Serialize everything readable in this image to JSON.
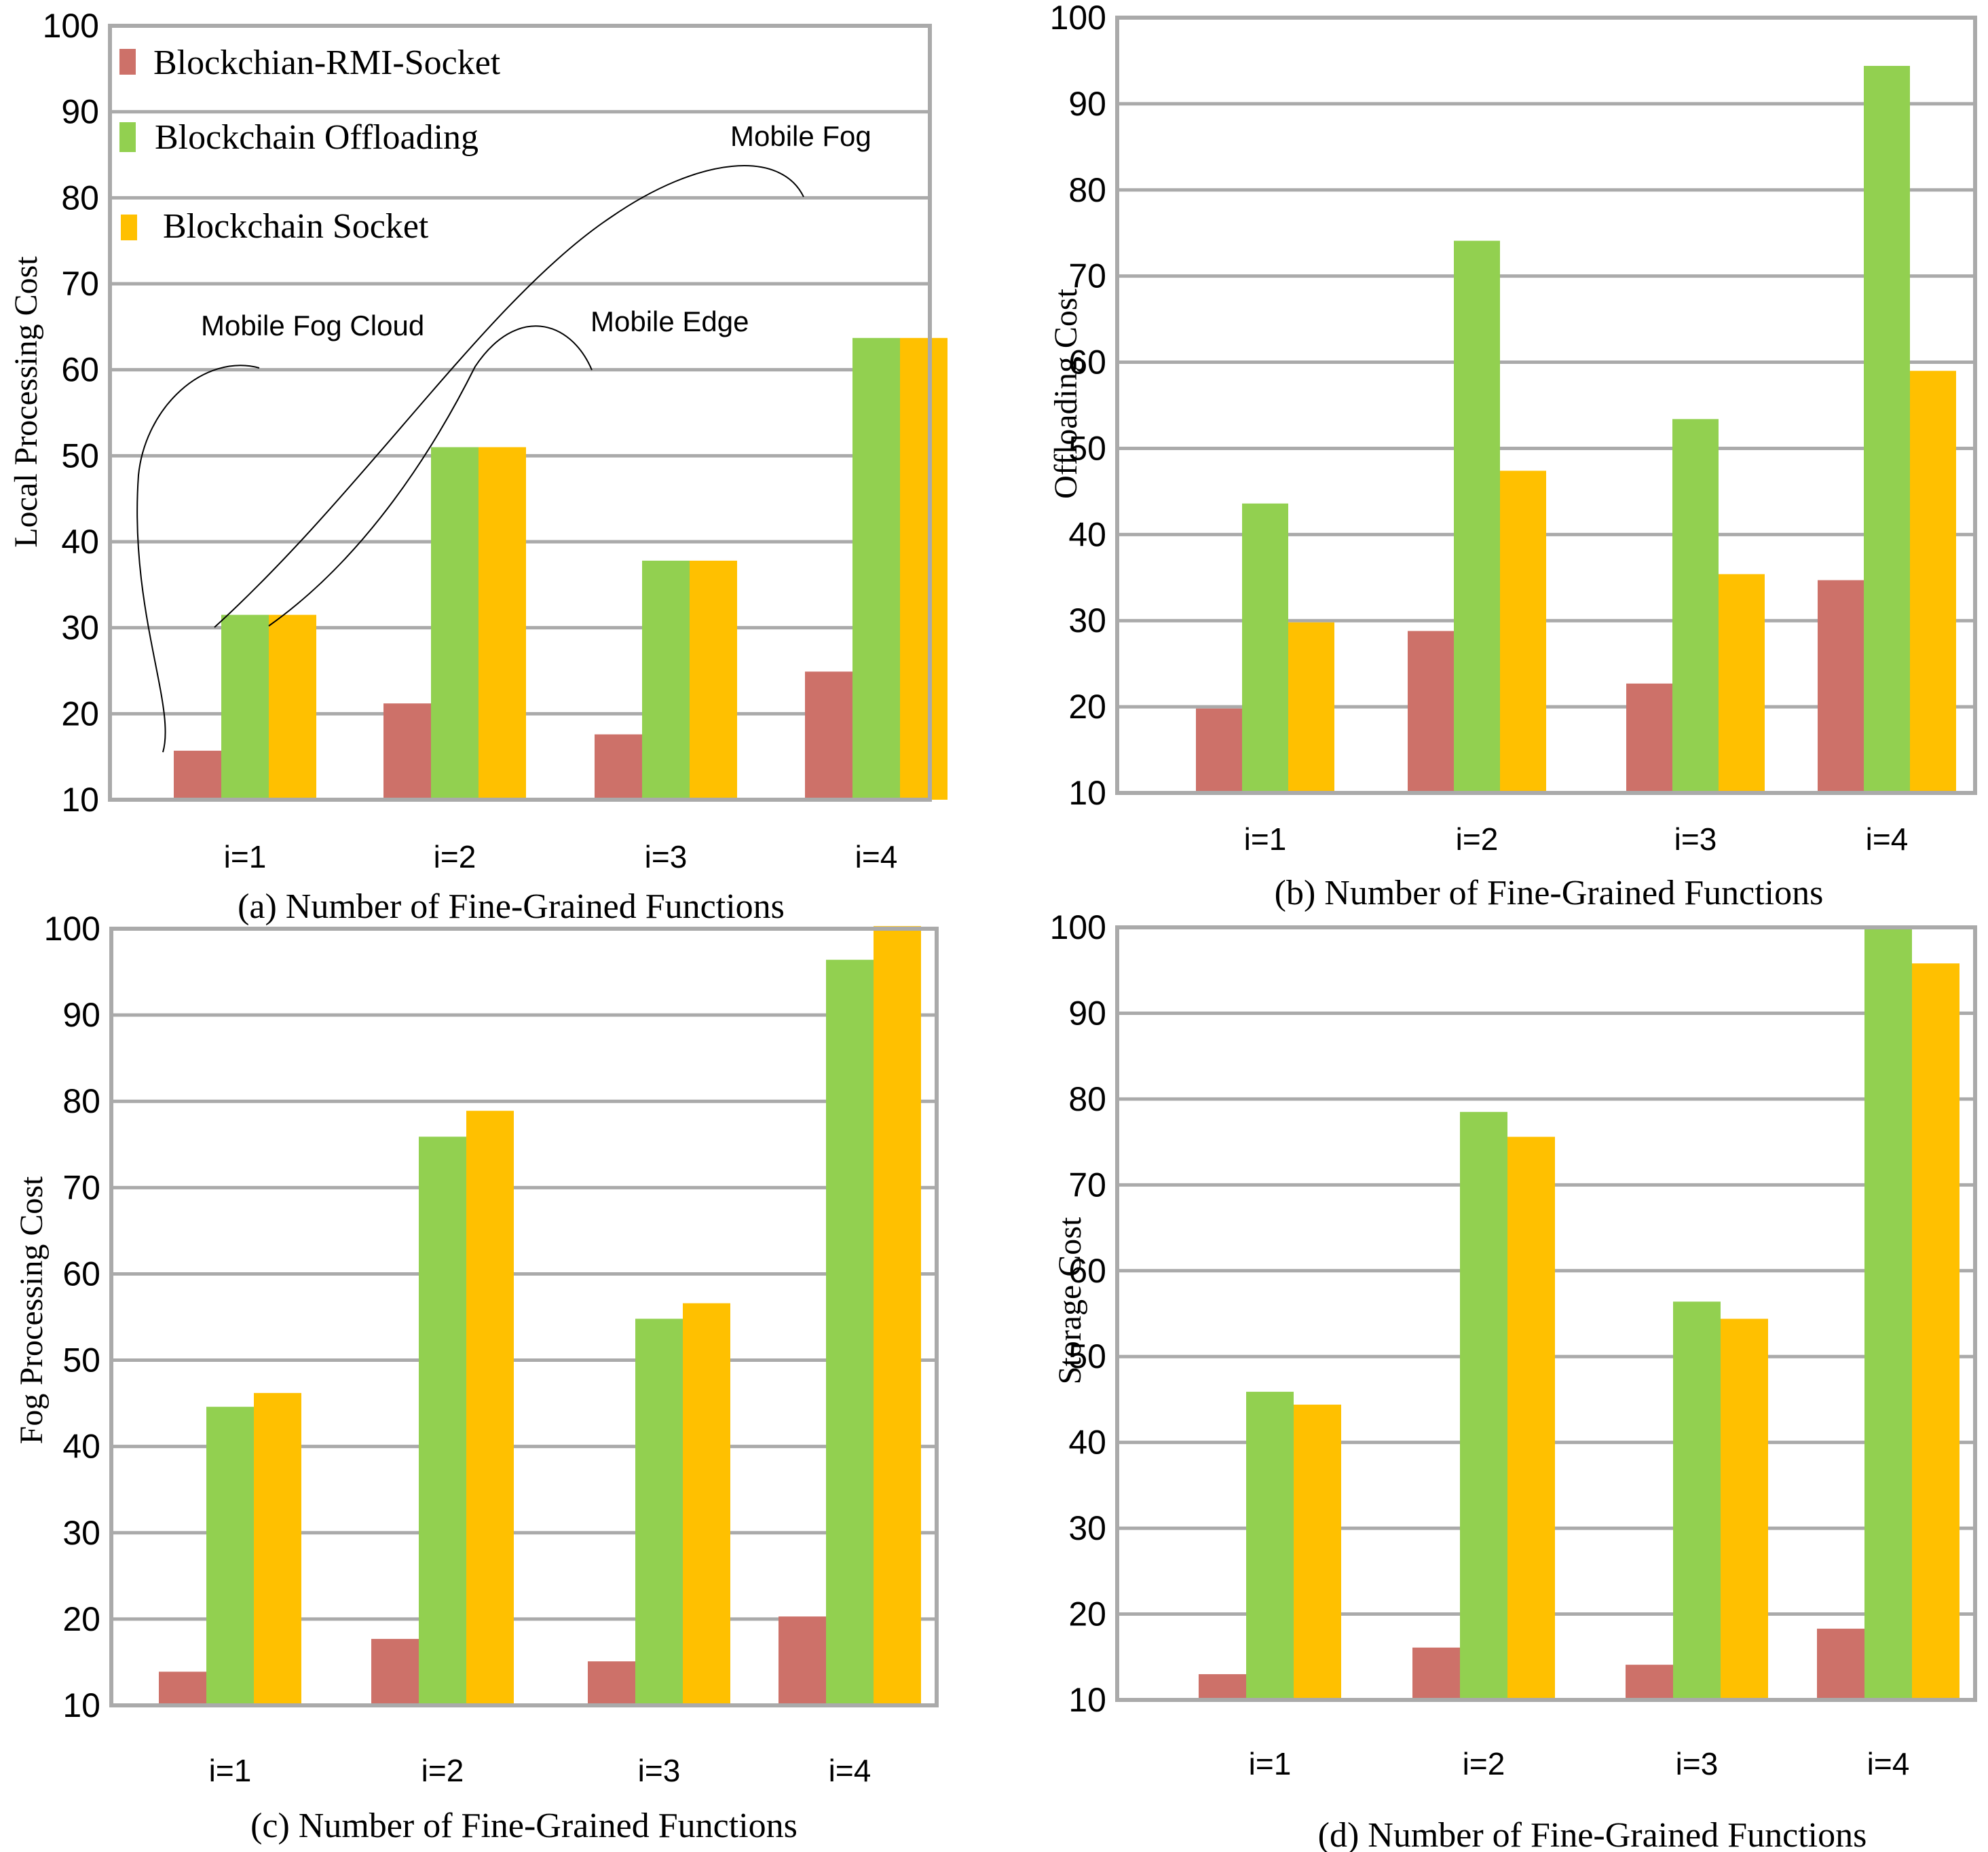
{
  "colors": {
    "rmi": "#CD7169",
    "offloading": "#92D050",
    "socket": "#FFC000",
    "grid": "#AAAAAA",
    "frame": "#AAAAAA"
  },
  "legend": [
    {
      "label": "Blockchian-RMI-Socket",
      "color": "#CD7169"
    },
    {
      "label": "Blockchain Offloading",
      "color": "#92D050"
    },
    {
      "label": "Blockchain Socket",
      "color": "#FFC000"
    }
  ],
  "annotations": [
    "Mobile Fog",
    "Mobile Fog Cloud",
    "Mobile Edge"
  ],
  "chart_data": [
    {
      "type": "bar",
      "title": "",
      "xlabel": "(a) Number of Fine-Grained Functions",
      "ylabel": "Local Processing Cost",
      "categories": [
        "i=1",
        "i=2",
        "i=3",
        "i=4"
      ],
      "ylim": [
        10,
        100
      ],
      "yticks": [
        "10",
        "20",
        "30",
        "40",
        "50",
        "60",
        "70",
        "80",
        "90",
        "100"
      ],
      "grid": true,
      "legend_position": "top-left",
      "series": [
        {
          "name": "Blockchian-RMI-Socket",
          "values": [
            15.7,
            21.2,
            17.6,
            24.9
          ]
        },
        {
          "name": "Blockchain Offloading",
          "values": [
            31.5,
            51.0,
            37.8,
            63.7
          ]
        },
        {
          "name": "Blockchain Socket",
          "values": [
            31.5,
            51.0,
            37.8,
            63.7
          ]
        }
      ]
    },
    {
      "type": "bar",
      "title": "",
      "xlabel": "(b)  Number of Fine-Grained Functions",
      "ylabel": "Offloading Cost",
      "categories": [
        "i=1",
        "i=2",
        "i=3",
        "i=4"
      ],
      "ylim": [
        10,
        100
      ],
      "yticks": [
        "10",
        "20",
        "30",
        "40",
        "50",
        "60",
        "70",
        "80",
        "90",
        "100"
      ],
      "grid": true,
      "series": [
        {
          "name": "Blockchian-RMI-Socket",
          "values": [
            19.8,
            28.8,
            22.7,
            34.7
          ]
        },
        {
          "name": "Blockchain Offloading",
          "values": [
            43.6,
            74.1,
            53.4,
            94.4
          ]
        },
        {
          "name": "Blockchain Socket",
          "values": [
            29.8,
            47.4,
            35.4,
            59.0
          ]
        }
      ]
    },
    {
      "type": "bar",
      "title": "",
      "xlabel": "(c)  Number of Fine-Grained Functions",
      "ylabel": "Fog Processing Cost",
      "categories": [
        "i=1",
        "i=2",
        "i=3",
        "i=4"
      ],
      "ylim": [
        10,
        100
      ],
      "yticks": [
        "10",
        "20",
        "30",
        "40",
        "50",
        "60",
        "70",
        "80",
        "90",
        "100"
      ],
      "grid": true,
      "series": [
        {
          "name": "Blockchian-RMI-Socket",
          "values": [
            13.9,
            17.7,
            15.1,
            20.3
          ]
        },
        {
          "name": "Blockchain Offloading",
          "values": [
            44.6,
            75.9,
            54.8,
            96.4
          ]
        },
        {
          "name": "Blockchain Socket",
          "values": [
            46.2,
            78.9,
            56.6,
            100.3
          ]
        }
      ]
    },
    {
      "type": "bar",
      "title": "",
      "xlabel": "(d) Number of Fine-Grained Functions",
      "ylabel": "Storage Cost",
      "categories": [
        "i=1",
        "i=2",
        "i=3",
        "i=4"
      ],
      "ylim": [
        10,
        100
      ],
      "yticks": [
        "10",
        "20",
        "30",
        "40",
        "50",
        "60",
        "70",
        "80",
        "90",
        "100"
      ],
      "grid": true,
      "series": [
        {
          "name": "Blockchian-RMI-Socket",
          "values": [
            13.0,
            16.1,
            14.1,
            18.3
          ]
        },
        {
          "name": "Blockchain Offloading",
          "values": [
            45.9,
            78.5,
            56.4,
            100.2
          ]
        },
        {
          "name": "Blockchain Socket",
          "values": [
            44.4,
            75.6,
            54.4,
            95.8
          ]
        }
      ]
    }
  ]
}
